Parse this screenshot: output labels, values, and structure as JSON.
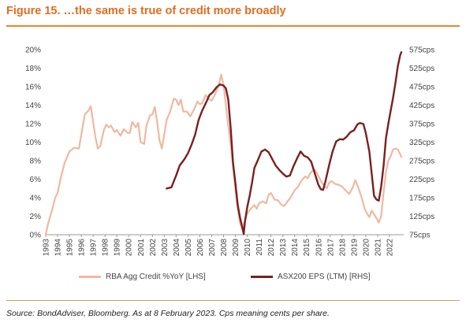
{
  "figure": {
    "title": "Figure 15. …the same is true of credit more broadly",
    "source": "Source: BondAdviser, Bloomberg. As at 8 February 2023. Cps meaning cents per share."
  },
  "chart_data": {
    "type": "line",
    "title": "",
    "xlabel": "",
    "x_ticks": [
      "1993",
      "1994",
      "1995",
      "1996",
      "1997",
      "1998",
      "1999",
      "2000",
      "2001",
      "2002",
      "2003",
      "2004",
      "2005",
      "2006",
      "2007",
      "2008",
      "2009",
      "2010",
      "2011",
      "2012",
      "2013",
      "2014",
      "2015",
      "2016",
      "2017",
      "2018",
      "2019",
      "2020",
      "2021",
      "2022"
    ],
    "x_range": [
      1993,
      2023.2
    ],
    "y_left": {
      "label": "",
      "ticks": [
        "0%",
        "2%",
        "4%",
        "6%",
        "8%",
        "10%",
        "12%",
        "14%",
        "16%",
        "18%",
        "20%"
      ],
      "range": [
        0,
        20
      ]
    },
    "y_right": {
      "label": "",
      "ticks": [
        "75cps",
        "125cps",
        "175cps",
        "225cps",
        "275cps",
        "325cps",
        "375cps",
        "425cps",
        "475cps",
        "525cps",
        "575cps"
      ],
      "range": [
        75,
        575
      ]
    },
    "grid": false,
    "legend_position": "bottom",
    "series": [
      {
        "name": "RBA Agg Credit %YoY [LHS]",
        "axis": "left",
        "color": "#f0b8a0",
        "points": [
          [
            1993.0,
            0.0
          ],
          [
            1993.2,
            1.2
          ],
          [
            1993.5,
            2.5
          ],
          [
            1993.8,
            4.0
          ],
          [
            1994.0,
            4.5
          ],
          [
            1994.3,
            6.3
          ],
          [
            1994.6,
            7.8
          ],
          [
            1995.0,
            9.0
          ],
          [
            1995.4,
            9.4
          ],
          [
            1995.8,
            9.3
          ],
          [
            1996.0,
            10.8
          ],
          [
            1996.3,
            13.0
          ],
          [
            1996.6,
            13.4
          ],
          [
            1996.8,
            13.9
          ],
          [
            1997.0,
            12.2
          ],
          [
            1997.2,
            10.5
          ],
          [
            1997.4,
            9.3
          ],
          [
            1997.6,
            9.6
          ],
          [
            1997.9,
            11.3
          ],
          [
            1998.1,
            11.9
          ],
          [
            1998.3,
            11.6
          ],
          [
            1998.5,
            11.8
          ],
          [
            1998.8,
            11.1
          ],
          [
            1999.0,
            11.3
          ],
          [
            1999.3,
            10.7
          ],
          [
            1999.6,
            11.4
          ],
          [
            1999.9,
            11.0
          ],
          [
            2000.1,
            11.0
          ],
          [
            2000.3,
            12.2
          ],
          [
            2000.6,
            11.6
          ],
          [
            2000.8,
            12.1
          ],
          [
            2001.0,
            10.0
          ],
          [
            2001.3,
            9.8
          ],
          [
            2001.5,
            11.8
          ],
          [
            2001.8,
            12.9
          ],
          [
            2002.0,
            13.0
          ],
          [
            2002.2,
            13.8
          ],
          [
            2002.4,
            12.2
          ],
          [
            2002.6,
            10.2
          ],
          [
            2002.8,
            9.3
          ],
          [
            2003.0,
            10.8
          ],
          [
            2003.2,
            12.4
          ],
          [
            2003.5,
            13.3
          ],
          [
            2003.8,
            14.7
          ],
          [
            2004.0,
            14.6
          ],
          [
            2004.2,
            14.0
          ],
          [
            2004.4,
            14.6
          ],
          [
            2004.6,
            13.3
          ],
          [
            2004.9,
            13.3
          ],
          [
            2005.2,
            12.8
          ],
          [
            2005.5,
            13.5
          ],
          [
            2005.8,
            14.4
          ],
          [
            2006.0,
            14.1
          ],
          [
            2006.2,
            14.2
          ],
          [
            2006.5,
            15.1
          ],
          [
            2006.8,
            14.6
          ],
          [
            2007.0,
            14.5
          ],
          [
            2007.3,
            15.2
          ],
          [
            2007.6,
            16.2
          ],
          [
            2007.8,
            17.3
          ],
          [
            2008.0,
            16.2
          ],
          [
            2008.2,
            14.0
          ],
          [
            2008.4,
            11.8
          ],
          [
            2008.6,
            9.8
          ],
          [
            2008.8,
            7.4
          ],
          [
            2009.0,
            5.0
          ],
          [
            2009.2,
            2.8
          ],
          [
            2009.4,
            1.2
          ],
          [
            2009.6,
            0.7
          ],
          [
            2009.8,
            1.5
          ],
          [
            2010.0,
            2.3
          ],
          [
            2010.3,
            2.8
          ],
          [
            2010.6,
            3.2
          ],
          [
            2010.8,
            2.8
          ],
          [
            2011.0,
            3.4
          ],
          [
            2011.3,
            3.6
          ],
          [
            2011.6,
            3.4
          ],
          [
            2011.8,
            4.3
          ],
          [
            2012.0,
            4.5
          ],
          [
            2012.3,
            3.8
          ],
          [
            2012.6,
            3.7
          ],
          [
            2012.9,
            3.2
          ],
          [
            2013.1,
            3.1
          ],
          [
            2013.4,
            3.6
          ],
          [
            2013.7,
            4.1
          ],
          [
            2014.0,
            4.8
          ],
          [
            2014.3,
            5.2
          ],
          [
            2014.6,
            5.9
          ],
          [
            2014.9,
            6.3
          ],
          [
            2015.1,
            6.1
          ],
          [
            2015.3,
            6.6
          ],
          [
            2015.5,
            6.9
          ],
          [
            2015.7,
            7.0
          ],
          [
            2015.9,
            6.6
          ],
          [
            2016.1,
            6.1
          ],
          [
            2016.3,
            5.6
          ],
          [
            2016.5,
            5.3
          ],
          [
            2016.7,
            5.0
          ],
          [
            2016.9,
            5.6
          ],
          [
            2017.1,
            5.8
          ],
          [
            2017.4,
            5.5
          ],
          [
            2017.7,
            5.4
          ],
          [
            2018.0,
            5.2
          ],
          [
            2018.3,
            4.8
          ],
          [
            2018.6,
            4.4
          ],
          [
            2018.9,
            5.1
          ],
          [
            2019.1,
            5.9
          ],
          [
            2019.4,
            5.0
          ],
          [
            2019.7,
            3.8
          ],
          [
            2019.9,
            2.8
          ],
          [
            2020.1,
            2.3
          ],
          [
            2020.3,
            1.9
          ],
          [
            2020.5,
            2.6
          ],
          [
            2020.7,
            2.2
          ],
          [
            2020.9,
            1.8
          ],
          [
            2021.1,
            1.3
          ],
          [
            2021.3,
            2.0
          ],
          [
            2021.5,
            4.5
          ],
          [
            2021.7,
            6.8
          ],
          [
            2021.9,
            8.0
          ],
          [
            2022.1,
            8.5
          ],
          [
            2022.3,
            9.2
          ],
          [
            2022.5,
            9.3
          ],
          [
            2022.7,
            9.2
          ],
          [
            2022.9,
            8.7
          ],
          [
            2023.0,
            8.4
          ]
        ]
      },
      {
        "name": "ASX200 EPS (LTM) [RHS]",
        "axis": "right",
        "color": "#7b1f1f",
        "points": [
          [
            2003.2,
            200
          ],
          [
            2003.6,
            203
          ],
          [
            2004.0,
            235
          ],
          [
            2004.3,
            262
          ],
          [
            2004.7,
            279
          ],
          [
            2005.0,
            295
          ],
          [
            2005.3,
            318
          ],
          [
            2005.6,
            345
          ],
          [
            2005.9,
            385
          ],
          [
            2006.2,
            410
          ],
          [
            2006.5,
            430
          ],
          [
            2006.8,
            452
          ],
          [
            2007.1,
            460
          ],
          [
            2007.4,
            473
          ],
          [
            2007.7,
            481
          ],
          [
            2008.0,
            478
          ],
          [
            2008.2,
            470
          ],
          [
            2008.4,
            440
          ],
          [
            2008.6,
            365
          ],
          [
            2008.8,
            270
          ],
          [
            2009.0,
            215
          ],
          [
            2009.2,
            155
          ],
          [
            2009.4,
            120
          ],
          [
            2009.6,
            92
          ],
          [
            2009.7,
            77
          ],
          [
            2009.8,
            110
          ],
          [
            2010.0,
            150
          ],
          [
            2010.2,
            180
          ],
          [
            2010.4,
            215
          ],
          [
            2010.6,
            255
          ],
          [
            2010.9,
            277
          ],
          [
            2011.2,
            300
          ],
          [
            2011.5,
            305
          ],
          [
            2011.8,
            298
          ],
          [
            2012.1,
            280
          ],
          [
            2012.4,
            262
          ],
          [
            2012.7,
            250
          ],
          [
            2013.0,
            240
          ],
          [
            2013.3,
            232
          ],
          [
            2013.6,
            235
          ],
          [
            2013.9,
            260
          ],
          [
            2014.2,
            281
          ],
          [
            2014.5,
            300
          ],
          [
            2014.8,
            288
          ],
          [
            2015.1,
            284
          ],
          [
            2015.4,
            272
          ],
          [
            2015.7,
            240
          ],
          [
            2016.0,
            210
          ],
          [
            2016.2,
            198
          ],
          [
            2016.4,
            196
          ],
          [
            2016.6,
            220
          ],
          [
            2016.9,
            262
          ],
          [
            2017.2,
            300
          ],
          [
            2017.5,
            327
          ],
          [
            2017.8,
            333
          ],
          [
            2018.1,
            332
          ],
          [
            2018.4,
            340
          ],
          [
            2018.7,
            352
          ],
          [
            2019.0,
            357
          ],
          [
            2019.3,
            373
          ],
          [
            2019.5,
            377
          ],
          [
            2019.8,
            374
          ],
          [
            2020.0,
            350
          ],
          [
            2020.3,
            300
          ],
          [
            2020.5,
            240
          ],
          [
            2020.7,
            180
          ],
          [
            2020.9,
            170
          ],
          [
            2021.1,
            167
          ],
          [
            2021.3,
            205
          ],
          [
            2021.5,
            260
          ],
          [
            2021.7,
            336
          ],
          [
            2021.9,
            375
          ],
          [
            2022.1,
            410
          ],
          [
            2022.3,
            445
          ],
          [
            2022.5,
            485
          ],
          [
            2022.7,
            530
          ],
          [
            2022.9,
            560
          ],
          [
            2023.0,
            568
          ]
        ]
      }
    ]
  }
}
